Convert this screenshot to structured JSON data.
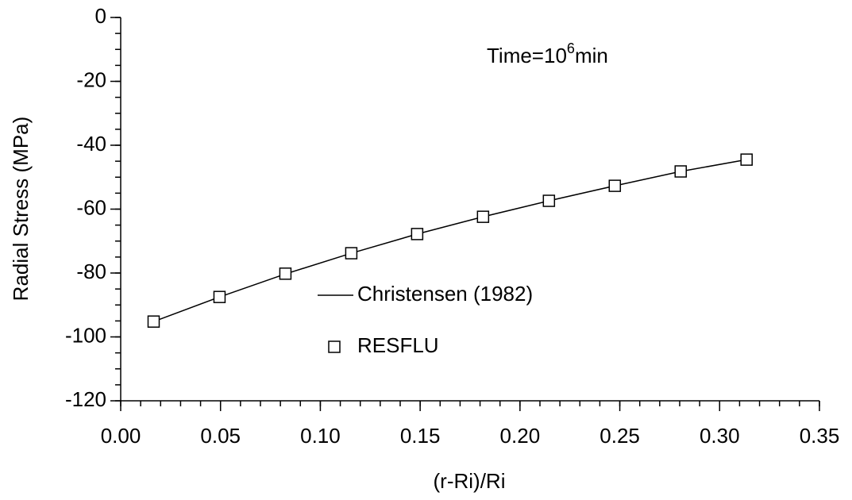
{
  "chart_data": {
    "type": "line",
    "xlabel": "(r-Ri)/Ri",
    "ylabel": "Radial Stress (MPa)",
    "annotation": {
      "text": "Time=10",
      "superscript": "6",
      "suffix": "min"
    },
    "x": [
      0.0165,
      0.0495,
      0.0825,
      0.1155,
      0.1485,
      0.1815,
      0.2145,
      0.2475,
      0.2805,
      0.3135
    ],
    "series": [
      {
        "name": "Christensen (1982)",
        "kind": "line",
        "color": "#000000",
        "values": [
          -95.2,
          -87.5,
          -80.3,
          -73.8,
          -67.8,
          -62.4,
          -57.4,
          -52.7,
          -48.2,
          -44.5
        ]
      },
      {
        "name": "RESFLU",
        "kind": "marker",
        "color": "#000000",
        "values": [
          -95.2,
          -87.5,
          -80.2,
          -73.8,
          -67.8,
          -62.4,
          -57.4,
          -52.7,
          -48.2,
          -44.5
        ]
      }
    ],
    "xlim": [
      0,
      0.35
    ],
    "ylim": [
      -120,
      0
    ],
    "xticks": [
      {
        "value": 0,
        "label": "0.00"
      },
      {
        "value": 0.05,
        "label": "0.05"
      },
      {
        "value": 0.1,
        "label": "0.10"
      },
      {
        "value": 0.15,
        "label": "0.15"
      },
      {
        "value": 0.2,
        "label": "0.20"
      },
      {
        "value": 0.25,
        "label": "0.25"
      },
      {
        "value": 0.3,
        "label": "0.30"
      },
      {
        "value": 0.35,
        "label": "0.35"
      }
    ],
    "yticks": [
      0,
      -20,
      -40,
      -60,
      -80,
      -100,
      -120
    ],
    "xminor_step": 0.01,
    "yminor_step": 5,
    "grid": false
  }
}
